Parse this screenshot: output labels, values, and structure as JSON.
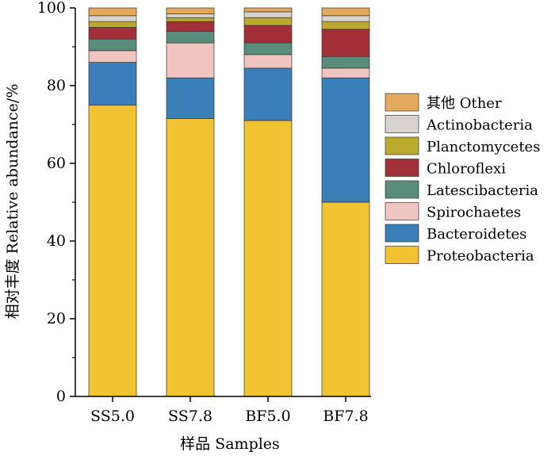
{
  "chart_data": {
    "type": "bar",
    "stacked": true,
    "categories": [
      "SS5.0",
      "SS7.8",
      "BF5.0",
      "BF7.8"
    ],
    "xlabel": "样品 Samples",
    "ylabel": "相对丰度 Relative abundance/%",
    "ylim": [
      0,
      100
    ],
    "yticks": [
      "0",
      "20",
      "40",
      "60",
      "80",
      "100"
    ],
    "legend_position": "right",
    "series": [
      {
        "name": "Proteobacteria",
        "color": "#f1c232",
        "values": [
          75,
          71.5,
          71,
          50
        ]
      },
      {
        "name": "Bacteroidetes",
        "color": "#3a7fb8",
        "values": [
          11,
          10.5,
          13.5,
          32
        ]
      },
      {
        "name": "Spirochaetes",
        "color": "#f0c4c0",
        "values": [
          3,
          9,
          3.5,
          2.5
        ]
      },
      {
        "name": "Latescibacteria",
        "color": "#5a8c7c",
        "values": [
          3,
          3,
          3,
          3
        ]
      },
      {
        "name": "Chloroflexi",
        "color": "#a33038",
        "values": [
          3,
          2.5,
          4.5,
          7
        ]
      },
      {
        "name": "Planctomycetes",
        "color": "#bcaa2f",
        "values": [
          1.5,
          1,
          2,
          2
        ]
      },
      {
        "name": "Actinobacteria",
        "color": "#d8d3cc",
        "values": [
          1.5,
          1,
          1.5,
          1.5
        ]
      },
      {
        "name": "其他 Other",
        "color": "#e4a95c",
        "values": [
          2,
          1.5,
          1,
          2
        ]
      }
    ]
  }
}
